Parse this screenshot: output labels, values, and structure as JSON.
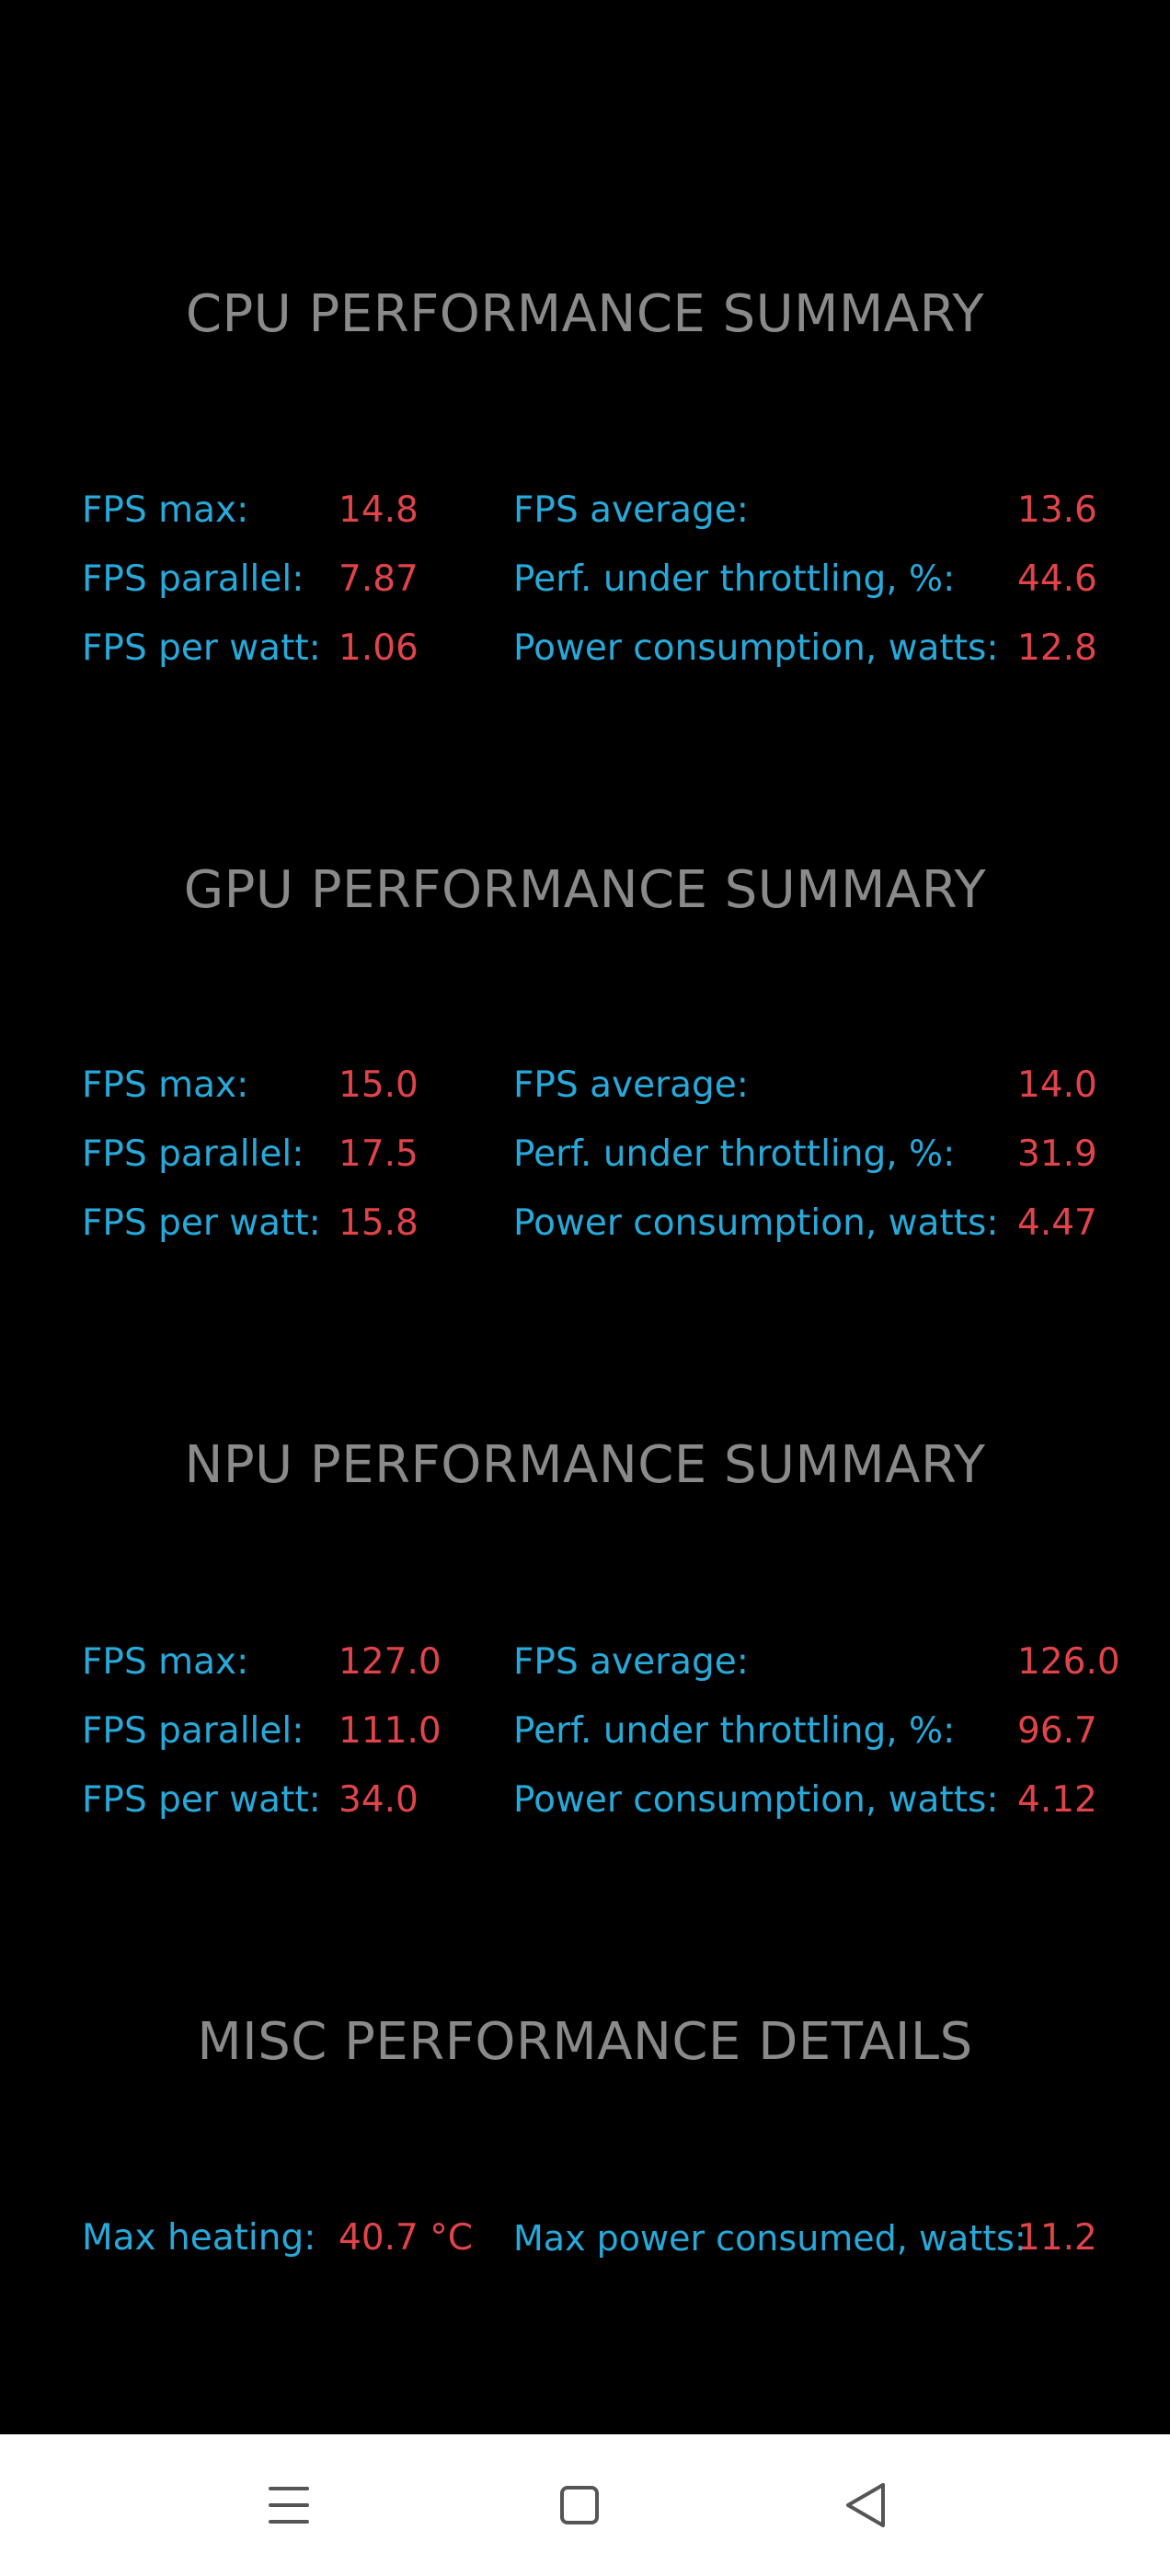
{
  "sections": [
    {
      "title": "CPU PERFORMANCE SUMMARY",
      "rows": [
        {
          "l1": "FPS max:",
          "v1": "14.8",
          "l2": "FPS average:",
          "v2": "13.6"
        },
        {
          "l1": "FPS parallel:",
          "v1": "7.87",
          "l2": "Perf. under throttling, %:",
          "v2": "44.6"
        },
        {
          "l1": "FPS per watt:",
          "v1": "1.06",
          "l2": "Power consumption, watts:",
          "v2": "12.8"
        }
      ]
    },
    {
      "title": "GPU PERFORMANCE SUMMARY",
      "rows": [
        {
          "l1": "FPS max:",
          "v1": "15.0",
          "l2": "FPS average:",
          "v2": "14.0"
        },
        {
          "l1": "FPS parallel:",
          "v1": "17.5",
          "l2": "Perf. under throttling, %:",
          "v2": "31.9"
        },
        {
          "l1": "FPS per watt:",
          "v1": "15.8",
          "l2": "Power consumption, watts:",
          "v2": "4.47"
        }
      ]
    },
    {
      "title": "NPU PERFORMANCE SUMMARY",
      "rows": [
        {
          "l1": "FPS max:",
          "v1": "127.0",
          "l2": "FPS average:",
          "v2": "126.0"
        },
        {
          "l1": "FPS parallel:",
          "v1": "111.0",
          "l2": "Perf. under throttling, %:",
          "v2": "96.7"
        },
        {
          "l1": "FPS per watt:",
          "v1": "34.0",
          "l2": "Power consumption, watts:",
          "v2": "4.12"
        }
      ]
    },
    {
      "title": "MISC PERFORMANCE DETAILS",
      "rows": [
        {
          "l1": "Max heating:",
          "v1": "40.7 °C",
          "l2": "Max power consumed, watts:",
          "v2": "11.2"
        }
      ]
    }
  ],
  "navbar": {
    "menu_icon": "menu-icon",
    "home_icon": "home-square-icon",
    "back_icon": "back-triangle-icon"
  },
  "colors": {
    "background": "#000000",
    "title": "#8a8a8a",
    "label": "#27a9da",
    "value": "#e0444a",
    "navbar": "#ffffff"
  }
}
